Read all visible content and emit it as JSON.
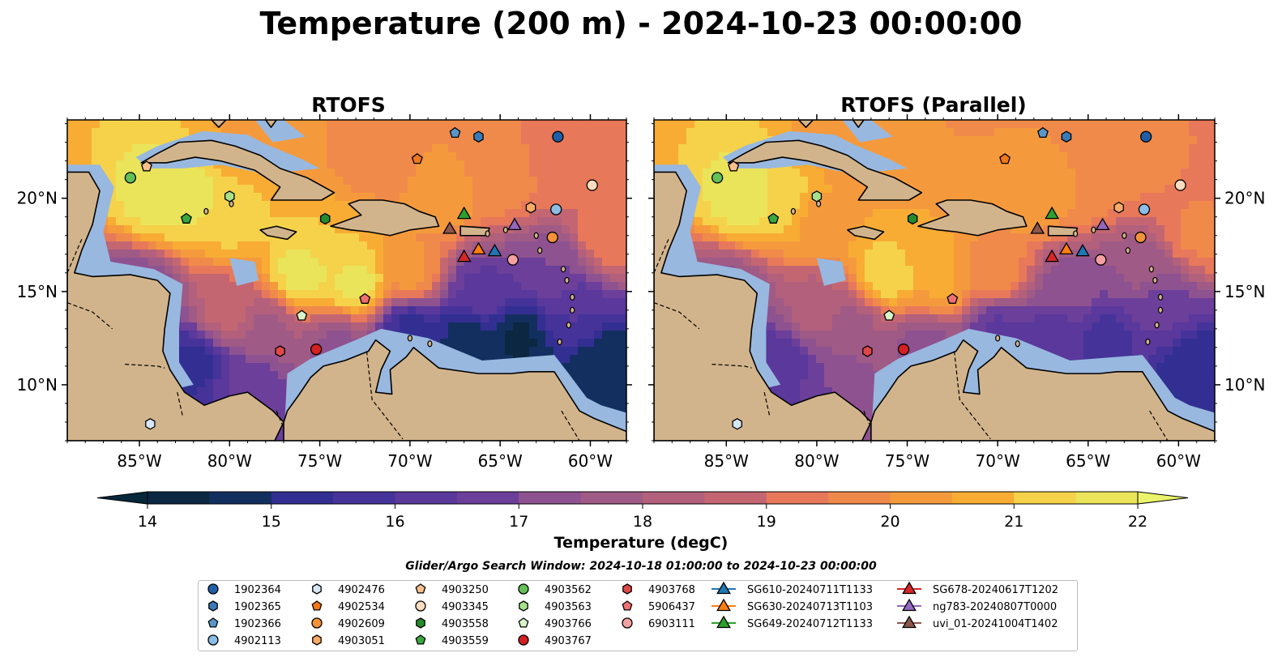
{
  "figure": {
    "title": "Temperature (200 m) - 2024-10-23 00:00:00",
    "search_window": "Glider/Argo Search Window: 2024-10-18 01:00:00 to 2024-10-23 00:00:00"
  },
  "colors": {
    "ocean_cold": "#08213a",
    "ocean_warm": "#f09045",
    "land": "#d2b48c",
    "shelf": "#98b8e0"
  },
  "chart_data": [
    {
      "type": "heatmap",
      "title": "RTOFS",
      "xlim": [
        -89,
        -58
      ],
      "ylim": [
        7,
        24.2
      ],
      "x_ticks": [
        -85,
        -80,
        -75,
        -70,
        -65,
        -60
      ],
      "x_tick_labels": [
        "85°W",
        "80°W",
        "75°W",
        "70°W",
        "65°W",
        "60°W"
      ],
      "y_ticks": [
        10,
        15,
        20
      ],
      "y_tick_labels": [
        "10°N",
        "15°N",
        "20°N"
      ],
      "y_label_side": "left"
    },
    {
      "type": "heatmap",
      "title": "RTOFS (Parallel)",
      "xlim": [
        -89,
        -58
      ],
      "ylim": [
        7,
        24.2
      ],
      "x_ticks": [
        -85,
        -80,
        -75,
        -70,
        -65,
        -60
      ],
      "x_tick_labels": [
        "85°W",
        "80°W",
        "75°W",
        "70°W",
        "65°W",
        "60°W"
      ],
      "y_ticks": [
        10,
        15,
        20
      ],
      "y_tick_labels": [
        "10°N",
        "15°N",
        "20°N"
      ],
      "y_label_side": "right"
    }
  ],
  "colorbar": {
    "label": "Temperature (degC)",
    "min": 14,
    "max": 22,
    "step": 0.5,
    "ticks": [
      14,
      15,
      16,
      17,
      18,
      19,
      20,
      21,
      22
    ],
    "tick_labels": [
      "14",
      "15",
      "16",
      "17",
      "18",
      "19",
      "20",
      "21",
      "22"
    ],
    "extend": "both"
  },
  "platforms": [
    {
      "name": "1902364",
      "marker": "circle",
      "color": "#1f5fa8",
      "lon": -61.8,
      "lat": 23.3
    },
    {
      "name": "1902365",
      "marker": "hexagon",
      "color": "#3a7ab8",
      "lon": -66.2,
      "lat": 23.3
    },
    {
      "name": "1902366",
      "marker": "pentagon",
      "color": "#5b96c9",
      "lon": -67.5,
      "lat": 23.5
    },
    {
      "name": "4902113",
      "marker": "circle",
      "color": "#8cbde6",
      "lon": -61.9,
      "lat": 19.4
    },
    {
      "name": "4902476",
      "marker": "hexagon",
      "color": "#d6e8f7",
      "lon": -84.4,
      "lat": 7.9
    },
    {
      "name": "4902534",
      "marker": "pentagon",
      "color": "#f07818",
      "lon": -69.6,
      "lat": 22.1
    },
    {
      "name": "4902609",
      "marker": "circle",
      "color": "#f5923a",
      "lon": -62.1,
      "lat": 17.9
    },
    {
      "name": "4903051",
      "marker": "hexagon",
      "color": "#f8aa66",
      "lon": -63.3,
      "lat": 19.5
    },
    {
      "name": "4903250",
      "marker": "pentagon",
      "color": "#f9c08c",
      "lon": -84.6,
      "lat": 21.7
    },
    {
      "name": "4903345",
      "marker": "circle",
      "color": "#fcdcc0",
      "lon": -59.9,
      "lat": 20.7
    },
    {
      "name": "4903558",
      "marker": "hexagon",
      "color": "#238b2b",
      "lon": -74.7,
      "lat": 18.9
    },
    {
      "name": "4903559",
      "marker": "pentagon",
      "color": "#3aa83c",
      "lon": -82.4,
      "lat": 18.9
    },
    {
      "name": "4903562",
      "marker": "circle",
      "color": "#62c055",
      "lon": -85.5,
      "lat": 21.1
    },
    {
      "name": "4903563",
      "marker": "hexagon",
      "color": "#a6e08a",
      "lon": -80.0,
      "lat": 20.1
    },
    {
      "name": "4903766",
      "marker": "pentagon",
      "color": "#d8f5c8",
      "lon": -76.0,
      "lat": 13.7
    },
    {
      "name": "4903767",
      "marker": "circle",
      "color": "#d42020",
      "lon": -75.2,
      "lat": 11.9
    },
    {
      "name": "4903768",
      "marker": "hexagon",
      "color": "#e04848",
      "lon": -77.2,
      "lat": 11.8
    },
    {
      "name": "5906437",
      "marker": "pentagon",
      "color": "#ee7070",
      "lon": -72.5,
      "lat": 14.6
    },
    {
      "name": "6903111",
      "marker": "circle",
      "color": "#f4a0a0",
      "lon": -64.3,
      "lat": 16.7
    },
    {
      "name": "SG610-20240711T1133",
      "marker": "triangle",
      "color": "#1f77b4",
      "lon": -65.3,
      "lat": 17.2
    },
    {
      "name": "SG630-20240713T1103",
      "marker": "triangle",
      "color": "#ff7f0e",
      "lon": -66.2,
      "lat": 17.3
    },
    {
      "name": "SG649-20240712T1133",
      "marker": "triangle",
      "color": "#2ca02c",
      "lon": -67.0,
      "lat": 19.2
    },
    {
      "name": "SG678-20240617T1202",
      "marker": "triangle",
      "color": "#d62728",
      "lon": -67.0,
      "lat": 16.9
    },
    {
      "name": "ng783-20240807T0000",
      "marker": "triangle",
      "color": "#9467bd",
      "lon": -64.2,
      "lat": 18.6
    },
    {
      "name": "uvi_01-20241004T1402",
      "marker": "triangle",
      "color": "#8c564b",
      "lon": -67.8,
      "lat": 18.4
    }
  ]
}
